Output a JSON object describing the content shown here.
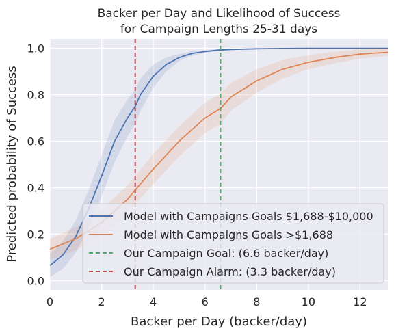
{
  "chart_data": {
    "type": "line",
    "title_lines": [
      "Backer per Day and Likelihood of Success",
      "for Campaign Lengths 25-31 days"
    ],
    "xlabel": "Backer per Day (backer/day)",
    "ylabel": "Predicted probability of Success",
    "xlim": [
      0,
      13.1
    ],
    "ylim": [
      -0.04,
      1.04
    ],
    "x_ticks": [
      0,
      2,
      4,
      6,
      8,
      10,
      12
    ],
    "y_ticks": [
      0.0,
      0.2,
      0.4,
      0.6,
      0.8,
      1.0
    ],
    "x_tick_labels": [
      "0",
      "2",
      "4",
      "6",
      "8",
      "10",
      "12"
    ],
    "y_tick_labels": [
      "0.0",
      "0.2",
      "0.4",
      "0.6",
      "0.8",
      "1.0"
    ],
    "grid": true,
    "legend_position": "lower-right",
    "series": [
      {
        "name": "Model with Campaigns Goals $1,688-$10,000",
        "kind": "logistic",
        "color": "#4c72b0",
        "x": [
          0,
          0.5,
          1,
          1.5,
          2,
          2.5,
          3,
          3.3,
          3.5,
          4,
          4.5,
          5,
          5.5,
          6,
          6.5,
          7,
          8,
          9,
          10,
          11,
          12,
          13.1
        ],
        "y": [
          0.065,
          0.11,
          0.19,
          0.31,
          0.45,
          0.6,
          0.7,
          0.75,
          0.8,
          0.88,
          0.93,
          0.96,
          0.978,
          0.986,
          0.992,
          0.995,
          0.998,
          0.999,
          1.0,
          1.0,
          1.0,
          1.0
        ],
        "ci_halfwidth": [
          0.05,
          0.06,
          0.07,
          0.08,
          0.09,
          0.09,
          0.08,
          0.075,
          0.07,
          0.05,
          0.03,
          0.015,
          0.01,
          0.006,
          0.004,
          0.003,
          0.002,
          0.001,
          0.001,
          0.001,
          0.001,
          0.001
        ]
      },
      {
        "name": "Model with Campaigns Goals >$1,688",
        "kind": "logistic",
        "color": "#dd8452",
        "x": [
          0,
          1,
          2,
          3,
          3.3,
          4,
          5,
          6,
          6.6,
          7,
          8,
          9,
          10,
          11,
          12,
          13.1
        ],
        "y": [
          0.135,
          0.18,
          0.25,
          0.35,
          0.39,
          0.48,
          0.6,
          0.7,
          0.74,
          0.79,
          0.86,
          0.91,
          0.94,
          0.96,
          0.975,
          0.983
        ],
        "ci_halfwidth": [
          0.045,
          0.05,
          0.055,
          0.06,
          0.06,
          0.065,
          0.065,
          0.065,
          0.065,
          0.06,
          0.05,
          0.04,
          0.03,
          0.025,
          0.02,
          0.015
        ]
      }
    ],
    "vlines": [
      {
        "name": "Our Campaign Goal: (6.6 backer/day)",
        "x": 6.6,
        "color": "#55a868"
      },
      {
        "name": "Our Campaign Alarm: (3.3 backer/day)",
        "x": 3.3,
        "color": "#c44e52"
      }
    ]
  }
}
